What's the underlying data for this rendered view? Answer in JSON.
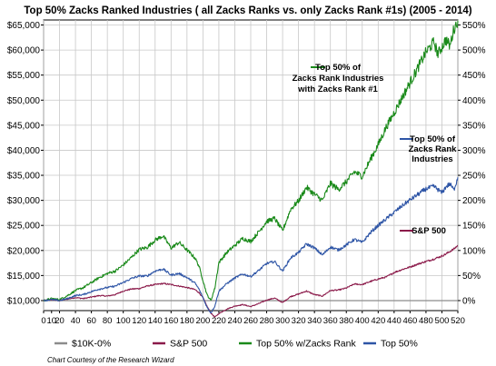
{
  "chart_data": {
    "type": "line",
    "title": "Top 50% Zacks Ranked Industries ( all Zacks Ranks vs. only Zacks Rank #1s) (2005 - 2014)",
    "credit": "Chart Courtesy of the Research Wizard",
    "xlim": [
      0,
      520
    ],
    "ylim": [
      8000,
      66000
    ],
    "y2lim": [
      -20,
      560
    ],
    "x_ticks": [
      0,
      10,
      20,
      40,
      60,
      80,
      100,
      120,
      140,
      160,
      180,
      200,
      220,
      240,
      260,
      280,
      300,
      320,
      340,
      360,
      380,
      400,
      420,
      440,
      460,
      480,
      500,
      520
    ],
    "y_ticks": [
      {
        "value": 10000,
        "label": "$10,000"
      },
      {
        "value": 15000,
        "label": "$15,000"
      },
      {
        "value": 20000,
        "label": "$20,000"
      },
      {
        "value": 25000,
        "label": "$25,000"
      },
      {
        "value": 30000,
        "label": "$30,000"
      },
      {
        "value": 35000,
        "label": "$35,000"
      },
      {
        "value": 40000,
        "label": "$40,000"
      },
      {
        "value": 45000,
        "label": "$45,000"
      },
      {
        "value": 50000,
        "label": "$50,000"
      },
      {
        "value": 55000,
        "label": "$55,000"
      },
      {
        "value": 60000,
        "label": "$60,000"
      },
      {
        "value": 65000,
        "label": "$65,000"
      }
    ],
    "y2_ticks": [
      {
        "value": 0,
        "label": "0%"
      },
      {
        "value": 50,
        "label": "50%"
      },
      {
        "value": 100,
        "label": "100%"
      },
      {
        "value": 150,
        "label": "150%"
      },
      {
        "value": 200,
        "label": "200%"
      },
      {
        "value": 250,
        "label": "250%"
      },
      {
        "value": 300,
        "label": "300%"
      },
      {
        "value": 350,
        "label": "350%"
      },
      {
        "value": 400,
        "label": "400%"
      },
      {
        "value": 450,
        "label": "450%"
      },
      {
        "value": 500,
        "label": "500%"
      },
      {
        "value": 550,
        "label": "550%"
      }
    ],
    "grid": true,
    "legend_position": "bottom",
    "series": [
      {
        "name": "$10K-0%",
        "color": "#8c8c8c",
        "x": [
          0,
          520
        ],
        "values": [
          10000,
          10000
        ]
      },
      {
        "name": "S&P 500",
        "color": "#8b1a4a",
        "x": [
          0,
          10,
          20,
          30,
          40,
          50,
          60,
          70,
          80,
          90,
          100,
          110,
          120,
          130,
          140,
          150,
          160,
          170,
          180,
          190,
          195,
          200,
          205,
          210,
          215,
          220,
          230,
          240,
          250,
          260,
          270,
          280,
          290,
          300,
          310,
          320,
          330,
          340,
          350,
          360,
          370,
          380,
          390,
          400,
          410,
          420,
          430,
          440,
          450,
          460,
          470,
          480,
          490,
          500,
          505,
          510,
          515,
          520
        ],
        "values": [
          10000,
          10200,
          10000,
          10300,
          10600,
          10400,
          10700,
          11000,
          10900,
          11200,
          11900,
          12300,
          12400,
          12900,
          13200,
          13400,
          13200,
          12900,
          12600,
          12200,
          11600,
          10600,
          8900,
          7500,
          6700,
          7400,
          8300,
          8900,
          9200,
          8800,
          9400,
          10100,
          10500,
          9600,
          10800,
          11300,
          11900,
          11200,
          10900,
          12000,
          12100,
          12500,
          13300,
          13200,
          13800,
          14300,
          14700,
          15600,
          16200,
          16700,
          17300,
          17800,
          18300,
          18900,
          19300,
          19800,
          20300,
          21000
        ]
      },
      {
        "name": "Top 50% w/Zacks Rank",
        "color": "#1a8a1a",
        "x": [
          0,
          10,
          20,
          30,
          40,
          50,
          60,
          70,
          80,
          90,
          100,
          110,
          120,
          130,
          140,
          150,
          160,
          170,
          180,
          190,
          195,
          200,
          205,
          210,
          215,
          220,
          230,
          240,
          250,
          260,
          270,
          280,
          290,
          300,
          310,
          320,
          330,
          340,
          350,
          360,
          370,
          380,
          390,
          400,
          410,
          420,
          430,
          440,
          450,
          460,
          470,
          480,
          490,
          495,
          500,
          505,
          510,
          515,
          520
        ],
        "values": [
          10000,
          10400,
          10200,
          11000,
          12000,
          12600,
          13600,
          14600,
          15400,
          15900,
          17100,
          18600,
          20200,
          20600,
          22100,
          22900,
          20500,
          21600,
          20100,
          18500,
          16900,
          14100,
          11200,
          10000,
          12500,
          17600,
          19600,
          21000,
          22400,
          21800,
          23700,
          25800,
          26400,
          23900,
          28200,
          29900,
          32600,
          31200,
          30000,
          33400,
          32200,
          33700,
          35700,
          34800,
          38100,
          41100,
          44600,
          47500,
          50500,
          53500,
          56500,
          59600,
          61600,
          59200,
          60600,
          62100,
          60800,
          64200,
          65900
        ]
      },
      {
        "name": "Top 50%",
        "color": "#2e55a6",
        "x": [
          0,
          10,
          20,
          30,
          40,
          50,
          60,
          70,
          80,
          90,
          100,
          110,
          120,
          130,
          140,
          150,
          160,
          170,
          180,
          190,
          195,
          200,
          205,
          210,
          215,
          220,
          230,
          240,
          250,
          260,
          270,
          280,
          290,
          300,
          310,
          320,
          330,
          340,
          350,
          360,
          370,
          380,
          390,
          400,
          410,
          420,
          430,
          440,
          450,
          460,
          470,
          480,
          490,
          500,
          505,
          510,
          515,
          520
        ],
        "values": [
          10000,
          10200,
          10000,
          10400,
          11000,
          11200,
          11800,
          12300,
          12600,
          12900,
          13600,
          14400,
          14900,
          14900,
          15900,
          16300,
          15100,
          15400,
          14600,
          13500,
          12300,
          10600,
          8700,
          7500,
          8900,
          11900,
          13400,
          14500,
          15300,
          14800,
          16000,
          17400,
          17800,
          15900,
          18500,
          19600,
          21300,
          20500,
          19100,
          20700,
          20100,
          21100,
          22200,
          21600,
          23500,
          25000,
          26300,
          27600,
          28900,
          30100,
          31200,
          32300,
          32800,
          31500,
          32700,
          33300,
          32100,
          34600
        ]
      }
    ],
    "annotations": [
      {
        "lines": [
          "Top 50% of",
          "Zacks Rank  Industries",
          "with Zacks Rank #1"
        ],
        "color": "#1a8a1a"
      },
      {
        "lines": [
          "Top 50% of",
          "Zacks Rank",
          "Industries"
        ],
        "color": "#2e55a6"
      },
      {
        "lines": [
          "S&P 500"
        ],
        "color": "#8b1a4a"
      }
    ]
  }
}
